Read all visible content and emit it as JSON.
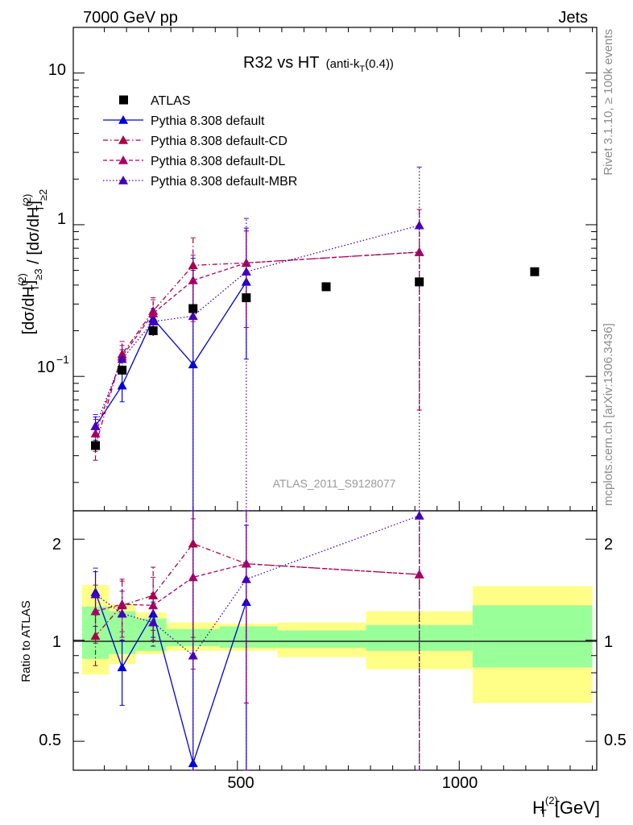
{
  "header": {
    "process": "7000 GeV pp",
    "category": "Jets",
    "title_main": "R32 vs HT",
    "title_sub": "(anti-k",
    "title_sub_idx": "T",
    "title_sub_end": "(0.4))",
    "side_top": "Rivet 3.1.10, ≥ 100k events",
    "side_bottom": "mcplots.cern.ch [arXiv:1306.3436]",
    "analysis": "ATLAS_2011_S9128077"
  },
  "axes": {
    "y_main_label": "[dσ/dH_T^(2)]_{≥3} / [dσ/dH_T^(2)]_{≥2}",
    "y_ratio_label": "Ratio to ATLAS",
    "x_label": "[GeV]",
    "x_label_sym": "H",
    "x_label_sub": "T",
    "x_label_sup": "(2)",
    "x_ticks": [
      "500",
      "1000"
    ],
    "y_main_ticks": [
      "10",
      "1",
      "10"
    ],
    "y_main_tick_sup": "−1",
    "y_ratio_ticks": [
      "2",
      "1",
      "0.5"
    ]
  },
  "legend": [
    {
      "label": "ATLAS",
      "color": "#000000",
      "style": "marker"
    },
    {
      "label": "Pythia 8.308 default",
      "color": "#0000dd",
      "style": "solid"
    },
    {
      "label": "Pythia 8.308 default-CD",
      "color": "#aa0044",
      "style": "dashdot"
    },
    {
      "label": "Pythia 8.308 default-DL",
      "color": "#aa0066",
      "style": "dashed"
    },
    {
      "label": "Pythia 8.308 default-MBR",
      "color": "#4400bb",
      "style": "dotted"
    }
  ],
  "chart_data": [
    {
      "type": "scatter",
      "title": "R32 vs HT",
      "x_scale": "linear",
      "y_scale": "log",
      "xlim": [
        130,
        1310
      ],
      "ylim": [
        0.013,
        20
      ],
      "grid": false,
      "legend_position": "top-left",
      "series": [
        {
          "name": "ATLAS",
          "x": [
            180,
            240,
            310,
            400,
            520,
            700,
            910,
            1170
          ],
          "y": [
            0.035,
            0.11,
            0.2,
            0.28,
            0.33,
            0.39,
            0.42,
            0.49
          ],
          "err": [
            0.003,
            0.006,
            0.015,
            0.02,
            0.02,
            0.015,
            0.03,
            0.02
          ]
        },
        {
          "name": "Pythia 8.308 default",
          "x": [
            180,
            240,
            310,
            400,
            520
          ],
          "y": [
            0.047,
            0.087,
            0.24,
            0.12,
            0.42
          ],
          "lo": [
            0.04,
            0.068,
            0.2,
            0.013,
            0.13
          ],
          "hi": [
            0.054,
            0.106,
            0.28,
            0.6,
            0.95
          ]
        },
        {
          "name": "Pythia 8.308 default-CD",
          "x": [
            180,
            240,
            310,
            400,
            520,
            910
          ],
          "y": [
            0.035,
            0.14,
            0.27,
            0.54,
            0.56,
            0.66
          ],
          "lo": [
            0.028,
            0.11,
            0.21,
            0.28,
            0.21,
            0.06
          ],
          "hi": [
            0.042,
            0.17,
            0.33,
            0.82,
            0.91,
            1.26
          ]
        },
        {
          "name": "Pythia 8.308 default-DL",
          "x": [
            180,
            240,
            310,
            400,
            520,
            910
          ],
          "y": [
            0.042,
            0.135,
            0.26,
            0.43,
            0.56,
            0.66
          ],
          "lo": [
            0.032,
            0.11,
            0.2,
            0.23,
            0.21,
            0.06
          ],
          "hi": [
            0.052,
            0.16,
            0.32,
            0.63,
            0.91,
            1.26
          ]
        },
        {
          "name": "Pythia 8.308 default-MBR",
          "x": [
            180,
            240,
            310,
            400,
            520,
            910
          ],
          "y": [
            0.047,
            0.13,
            0.23,
            0.25,
            0.49,
            0.99
          ],
          "lo": [
            0.038,
            0.11,
            0.19,
            0.013,
            0.013,
            0.013
          ],
          "hi": [
            0.056,
            0.15,
            0.28,
            0.5,
            1.1,
            2.4
          ]
        }
      ]
    },
    {
      "type": "line",
      "title": "Ratio to ATLAS",
      "x_scale": "linear",
      "y_scale": "log",
      "xlim": [
        130,
        1310
      ],
      "ylim": [
        0.41,
        2.43
      ],
      "reference_line": 1,
      "bands": [
        {
          "x0": 150,
          "x1": 210,
          "green": [
            0.88,
            1.26
          ],
          "yellow": [
            0.79,
            1.46
          ]
        },
        {
          "x0": 210,
          "x1": 270,
          "green": [
            0.91,
            1.22
          ],
          "yellow": [
            0.85,
            1.28
          ]
        },
        {
          "x0": 270,
          "x1": 340,
          "green": [
            0.93,
            1.16
          ],
          "yellow": [
            0.91,
            1.21
          ]
        },
        {
          "x0": 340,
          "x1": 460,
          "green": [
            0.96,
            1.08
          ],
          "yellow": [
            0.93,
            1.13
          ]
        },
        {
          "x0": 460,
          "x1": 590,
          "green": [
            0.95,
            1.1
          ],
          "yellow": [
            0.93,
            1.12
          ]
        },
        {
          "x0": 590,
          "x1": 790,
          "green": [
            0.95,
            1.07
          ],
          "yellow": [
            0.89,
            1.13
          ]
        },
        {
          "x0": 790,
          "x1": 1030,
          "green": [
            0.93,
            1.11
          ],
          "yellow": [
            0.82,
            1.22
          ]
        },
        {
          "x0": 1030,
          "x1": 1300,
          "green": [
            0.83,
            1.27
          ],
          "yellow": [
            0.65,
            1.45
          ]
        }
      ],
      "series": [
        {
          "name": "Pythia 8.308 default",
          "x": [
            180,
            240,
            310,
            400,
            520
          ],
          "y": [
            1.39,
            0.83,
            1.2,
            0.43,
            1.3
          ],
          "lo": [
            1.19,
            0.64,
            1.02,
            0.41,
            0.41
          ],
          "hi": [
            1.6,
            1.0,
            1.38,
            2.43,
            2.2
          ]
        },
        {
          "name": "Pythia 8.308 default-CD",
          "x": [
            180,
            240,
            310,
            400,
            520,
            910
          ],
          "y": [
            1.03,
            1.27,
            1.36,
            1.94,
            1.69,
            1.57
          ],
          "lo": [
            0.84,
            1.02,
            1.07,
            1.02,
            0.65,
            0.41
          ],
          "hi": [
            1.22,
            1.52,
            1.65,
            2.43,
            2.43,
            2.43
          ]
        },
        {
          "name": "Pythia 8.308 default-DL",
          "x": [
            180,
            240,
            310,
            400,
            520,
            910
          ],
          "y": [
            1.22,
            1.28,
            1.27,
            1.54,
            1.69,
            1.57
          ],
          "lo": [
            0.98,
            1.06,
            1.0,
            0.82,
            0.65,
            0.41
          ],
          "hi": [
            1.46,
            1.5,
            1.54,
            2.3,
            2.43,
            2.43
          ]
        },
        {
          "name": "Pythia 8.308 default-MBR",
          "x": [
            180,
            240,
            310,
            400,
            520,
            910
          ],
          "y": [
            1.37,
            1.2,
            1.13,
            0.9,
            1.52,
            2.35
          ],
          "lo": [
            1.1,
            1.0,
            0.96,
            0.41,
            0.41,
            0.41
          ],
          "hi": [
            1.64,
            1.4,
            1.3,
            2.43,
            2.43,
            2.43
          ]
        }
      ]
    }
  ]
}
